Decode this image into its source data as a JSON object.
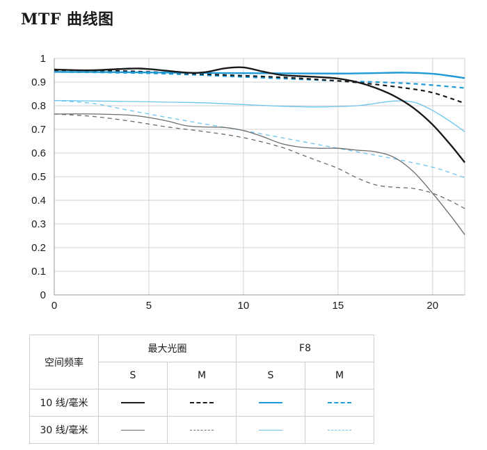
{
  "title": "MTF 曲线图",
  "chart_data": {
    "type": "line",
    "xlim": [
      0,
      21.7
    ],
    "ylim": [
      0,
      1
    ],
    "x_ticks": [
      0,
      5,
      10,
      15,
      20
    ],
    "y_ticks": [
      0,
      0.1,
      0.2,
      0.3,
      0.4,
      0.5,
      0.6,
      0.7,
      0.8,
      0.9,
      1
    ],
    "x_tick_labels": [
      "0",
      "5",
      "10",
      "15",
      "20"
    ],
    "y_tick_labels": [
      "0",
      "0.1",
      "0.2",
      "0.3",
      "0.4",
      "0.5",
      "0.6",
      "0.7",
      "0.8",
      "0.9",
      "1"
    ],
    "grid": true,
    "colors": {
      "black": "#1a1a1a",
      "gray": "#6b6b6b",
      "blue": "#1e9ad6",
      "lightblue": "#6cc5ee"
    },
    "series": [
      {
        "id": "max_10_S",
        "color": "black",
        "width": 2.4,
        "dash": "solid",
        "x": [
          0,
          2,
          4,
          5,
          7,
          8,
          9,
          10,
          11,
          12,
          13,
          14,
          15,
          16,
          17,
          18,
          19,
          20,
          21,
          21.7
        ],
        "y": [
          0.953,
          0.95,
          0.957,
          0.955,
          0.94,
          0.942,
          0.958,
          0.962,
          0.945,
          0.93,
          0.925,
          0.921,
          0.915,
          0.9,
          0.875,
          0.84,
          0.79,
          0.72,
          0.63,
          0.56
        ]
      },
      {
        "id": "max_10_M",
        "color": "black",
        "width": 2.2,
        "dash": "6,5",
        "x": [
          0,
          3,
          6,
          9,
          12,
          15,
          17,
          19,
          20,
          21,
          21.7
        ],
        "y": [
          0.95,
          0.948,
          0.94,
          0.93,
          0.92,
          0.905,
          0.89,
          0.87,
          0.855,
          0.83,
          0.81
        ]
      },
      {
        "id": "f8_10_S",
        "color": "blue",
        "width": 2.4,
        "dash": "solid",
        "x": [
          0,
          3,
          6,
          9,
          12,
          15,
          17,
          18.5,
          20,
          21,
          21.7
        ],
        "y": [
          0.943,
          0.942,
          0.94,
          0.938,
          0.937,
          0.936,
          0.938,
          0.94,
          0.935,
          0.925,
          0.917
        ]
      },
      {
        "id": "f8_10_M",
        "color": "blue",
        "width": 2.2,
        "dash": "6,5",
        "x": [
          0,
          3,
          6,
          9,
          12,
          15,
          17,
          19,
          21,
          21.7
        ],
        "y": [
          0.943,
          0.94,
          0.935,
          0.925,
          0.915,
          0.905,
          0.9,
          0.893,
          0.88,
          0.875
        ]
      },
      {
        "id": "max_30_S",
        "color": "gray",
        "width": 1.3,
        "dash": "solid",
        "x": [
          0,
          2,
          4,
          5,
          6,
          7,
          8,
          9,
          10,
          11,
          12,
          13,
          14,
          15,
          16,
          17,
          18,
          19,
          20,
          21,
          21.7
        ],
        "y": [
          0.765,
          0.765,
          0.76,
          0.75,
          0.735,
          0.715,
          0.71,
          0.708,
          0.695,
          0.67,
          0.64,
          0.625,
          0.62,
          0.62,
          0.612,
          0.605,
          0.58,
          0.52,
          0.43,
          0.33,
          0.255
        ]
      },
      {
        "id": "max_30_M",
        "color": "gray",
        "width": 1.3,
        "dash": "6,5",
        "x": [
          0,
          2,
          4,
          6,
          8,
          10,
          12,
          13,
          14,
          15,
          16,
          17,
          18,
          19,
          20,
          21,
          21.7
        ],
        "y": [
          0.765,
          0.755,
          0.735,
          0.71,
          0.69,
          0.665,
          0.625,
          0.595,
          0.565,
          0.535,
          0.495,
          0.465,
          0.455,
          0.45,
          0.43,
          0.395,
          0.365
        ]
      },
      {
        "id": "f8_30_S",
        "color": "lightblue",
        "width": 1.3,
        "dash": "solid",
        "x": [
          0,
          2,
          4,
          6,
          8,
          10,
          12,
          14,
          16,
          17,
          18,
          19,
          20,
          21,
          21.7
        ],
        "y": [
          0.822,
          0.82,
          0.818,
          0.815,
          0.812,
          0.805,
          0.798,
          0.795,
          0.8,
          0.81,
          0.82,
          0.815,
          0.78,
          0.73,
          0.69
        ]
      },
      {
        "id": "f8_30_M",
        "color": "lightblue",
        "width": 1.3,
        "dash": "6,5",
        "x": [
          0,
          2,
          4,
          6,
          8,
          10,
          12,
          14,
          16,
          18,
          20,
          21,
          21.7
        ],
        "y": [
          0.822,
          0.81,
          0.78,
          0.75,
          0.722,
          0.695,
          0.665,
          0.635,
          0.605,
          0.575,
          0.54,
          0.515,
          0.495
        ]
      }
    ]
  },
  "legend": {
    "corner_label": "空间频率",
    "group_max": "最大光圈",
    "group_f8": "F8",
    "sub_s": "S",
    "sub_m": "M",
    "row_10": "10 线/毫米",
    "row_30": "30 线/毫米"
  }
}
